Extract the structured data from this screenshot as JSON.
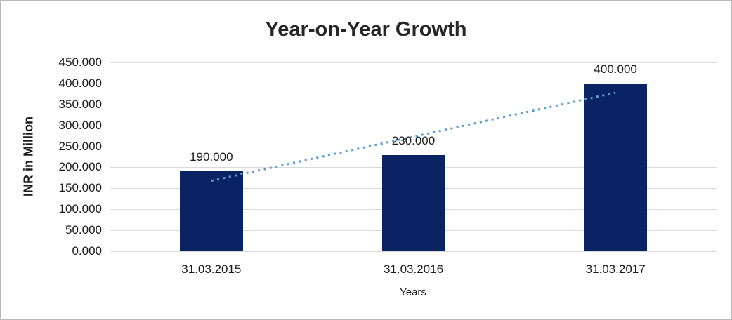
{
  "chart_data": {
    "type": "bar",
    "title": "Year-on-Year Growth",
    "categories": [
      "31.03.2015",
      "31.03.2016",
      "31.03.2017"
    ],
    "values": [
      190,
      230,
      400
    ],
    "value_labels": [
      "190.000",
      "230.000",
      "400.000"
    ],
    "xlabel": "Years",
    "ylabel": "INR in Million",
    "ylim": [
      0,
      450
    ],
    "y_tick_step": 50,
    "y_tick_labels": [
      "0.000",
      "50.000",
      "100.000",
      "150.000",
      "200.000",
      "250.000",
      "300.000",
      "350.000",
      "400.000",
      "450.000"
    ],
    "grid": true,
    "legend": "none",
    "trendline": {
      "type": "linear",
      "style": "dotted",
      "start_value": 168,
      "end_value": 378
    },
    "colors": {
      "bar": "#0a2463",
      "trendline": "#5b9bd5",
      "gridline": "#d9d9d9",
      "text": "#1a1a1a",
      "title": "#262626"
    }
  }
}
